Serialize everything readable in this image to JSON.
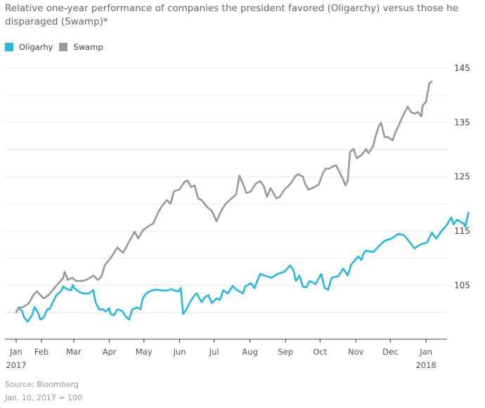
{
  "chart_data": {
    "type": "line",
    "title": "Relative one-year performance of companies the president favored (Oligarchy) versus those he disparaged (Swamp)*",
    "xlabel": "",
    "ylabel": "",
    "x_units": "days since Jan 1, 2017",
    "xlim": [
      0,
      402
    ],
    "ylim": [
      95,
      146.5
    ],
    "grid": true,
    "legend_position": "top-left",
    "y_ticks": [
      {
        "value": 145,
        "label": "145"
      },
      {
        "value": 140,
        "label": ""
      },
      {
        "value": 135,
        "label": "135"
      },
      {
        "value": 130,
        "label": ""
      },
      {
        "value": 125,
        "label": "125"
      },
      {
        "value": 120,
        "label": ""
      },
      {
        "value": 115,
        "label": "115"
      },
      {
        "value": 110,
        "label": ""
      },
      {
        "value": 105,
        "label": "105"
      },
      {
        "value": 100,
        "label": ""
      }
    ],
    "x_ticks": [
      {
        "day": 9,
        "label": "Jan",
        "sub": "2017"
      },
      {
        "day": 31,
        "label": "Feb",
        "sub": ""
      },
      {
        "day": 59,
        "label": "Mar",
        "sub": ""
      },
      {
        "day": 90,
        "label": "Apr",
        "sub": ""
      },
      {
        "day": 120,
        "label": "May",
        "sub": ""
      },
      {
        "day": 151,
        "label": "Jun",
        "sub": ""
      },
      {
        "day": 181,
        "label": "Jul",
        "sub": ""
      },
      {
        "day": 212,
        "label": "Aug",
        "sub": ""
      },
      {
        "day": 243,
        "label": "Sep",
        "sub": ""
      },
      {
        "day": 273,
        "label": "Oct",
        "sub": ""
      },
      {
        "day": 304,
        "label": "Nov",
        "sub": ""
      },
      {
        "day": 334,
        "label": "Dec",
        "sub": ""
      },
      {
        "day": 365,
        "label": "Jan",
        "sub": "2018"
      }
    ],
    "series": [
      {
        "name": "Oligarhy",
        "color": "#25b7e4",
        "points": [
          [
            9,
            100.0
          ],
          [
            11,
            100.9
          ],
          [
            14,
            100.3
          ],
          [
            16,
            99.1
          ],
          [
            19,
            98.3
          ],
          [
            23,
            99.6
          ],
          [
            25,
            101.0
          ],
          [
            28,
            100.0
          ],
          [
            30,
            98.7
          ],
          [
            33,
            99.1
          ],
          [
            36,
            100.6
          ],
          [
            38,
            100.6
          ],
          [
            41,
            101.9
          ],
          [
            44,
            103.2
          ],
          [
            48,
            103.9
          ],
          [
            50,
            104.8
          ],
          [
            53,
            104.3
          ],
          [
            57,
            104.1
          ],
          [
            58,
            105.1
          ],
          [
            60,
            104.4
          ],
          [
            63,
            103.9
          ],
          [
            67,
            103.5
          ],
          [
            72,
            103.5
          ],
          [
            76,
            104.1
          ],
          [
            78,
            101.9
          ],
          [
            81,
            100.6
          ],
          [
            84,
            100.6
          ],
          [
            87,
            100.2
          ],
          [
            90,
            100.8
          ],
          [
            91,
            99.7
          ],
          [
            94,
            99.5
          ],
          [
            97,
            100.6
          ],
          [
            101,
            100.3
          ],
          [
            104,
            99.3
          ],
          [
            107,
            98.7
          ],
          [
            110,
            100.6
          ],
          [
            114,
            100.9
          ],
          [
            117,
            100.6
          ],
          [
            119,
            102.6
          ],
          [
            122,
            103.5
          ],
          [
            125,
            103.9
          ],
          [
            130,
            104.2
          ],
          [
            135,
            104.1
          ],
          [
            138,
            104.0
          ],
          [
            141,
            104.1
          ],
          [
            144,
            104.3
          ],
          [
            147,
            104.0
          ],
          [
            150,
            103.9
          ],
          [
            152,
            104.5
          ],
          [
            154,
            99.7
          ],
          [
            157,
            100.6
          ],
          [
            160,
            101.9
          ],
          [
            164,
            103.2
          ],
          [
            166,
            103.5
          ],
          [
            170,
            101.9
          ],
          [
            173,
            102.8
          ],
          [
            176,
            103.2
          ],
          [
            179,
            101.7
          ],
          [
            183,
            102.6
          ],
          [
            186,
            102.3
          ],
          [
            189,
            104.1
          ],
          [
            193,
            103.5
          ],
          [
            197,
            104.9
          ],
          [
            201,
            104.1
          ],
          [
            206,
            103.5
          ],
          [
            208,
            104.8
          ],
          [
            213,
            105.4
          ],
          [
            216,
            104.5
          ],
          [
            221,
            107.1
          ],
          [
            226,
            106.7
          ],
          [
            231,
            106.4
          ],
          [
            236,
            107.1
          ],
          [
            242,
            107.5
          ],
          [
            247,
            108.7
          ],
          [
            250,
            107.7
          ],
          [
            252,
            105.8
          ],
          [
            255,
            106.8
          ],
          [
            258,
            104.8
          ],
          [
            261,
            104.6
          ],
          [
            264,
            105.8
          ],
          [
            269,
            105.2
          ],
          [
            274,
            107.1
          ],
          [
            277,
            104.5
          ],
          [
            280,
            104.2
          ],
          [
            283,
            106.4
          ],
          [
            289,
            106.7
          ],
          [
            293,
            108.1
          ],
          [
            297,
            106.8
          ],
          [
            300,
            108.8
          ],
          [
            306,
            110.3
          ],
          [
            309,
            109.7
          ],
          [
            311,
            111.0
          ],
          [
            313,
            111.4
          ],
          [
            319,
            111.1
          ],
          [
            323,
            112.0
          ],
          [
            329,
            113.2
          ],
          [
            335,
            113.6
          ],
          [
            341,
            114.5
          ],
          [
            346,
            114.2
          ],
          [
            351,
            112.9
          ],
          [
            355,
            111.8
          ],
          [
            360,
            112.5
          ],
          [
            366,
            112.9
          ],
          [
            370,
            114.7
          ],
          [
            374,
            113.6
          ],
          [
            378,
            114.9
          ],
          [
            382,
            115.8
          ],
          [
            387,
            117.5
          ],
          [
            389,
            116.2
          ],
          [
            392,
            117.1
          ],
          [
            398,
            116.3
          ],
          [
            399,
            115.8
          ],
          [
            402,
            118.4
          ]
        ]
      },
      {
        "name": "Swamp",
        "color": "#999999",
        "points": [
          [
            9,
            100.0
          ],
          [
            11,
            100.9
          ],
          [
            15,
            101.0
          ],
          [
            20,
            101.7
          ],
          [
            24,
            103.2
          ],
          [
            27,
            103.9
          ],
          [
            30,
            103.2
          ],
          [
            33,
            102.6
          ],
          [
            37,
            103.2
          ],
          [
            41,
            104.2
          ],
          [
            45,
            105.2
          ],
          [
            50,
            106.4
          ],
          [
            51,
            107.5
          ],
          [
            54,
            106.0
          ],
          [
            58,
            106.4
          ],
          [
            61,
            105.8
          ],
          [
            67,
            105.8
          ],
          [
            71,
            106.1
          ],
          [
            76,
            106.8
          ],
          [
            80,
            106.0
          ],
          [
            83,
            106.6
          ],
          [
            86,
            108.7
          ],
          [
            89,
            109.5
          ],
          [
            92,
            110.3
          ],
          [
            97,
            112.0
          ],
          [
            99,
            111.5
          ],
          [
            102,
            111.0
          ],
          [
            107,
            113.0
          ],
          [
            112,
            114.9
          ],
          [
            115,
            113.6
          ],
          [
            119,
            115.1
          ],
          [
            124,
            115.9
          ],
          [
            128,
            116.4
          ],
          [
            133,
            118.7
          ],
          [
            137,
            120.0
          ],
          [
            140,
            120.7
          ],
          [
            143,
            120.0
          ],
          [
            146,
            122.3
          ],
          [
            151,
            122.7
          ],
          [
            155,
            124.0
          ],
          [
            158,
            124.3
          ],
          [
            161,
            123.1
          ],
          [
            164,
            123.4
          ],
          [
            167,
            121.0
          ],
          [
            170,
            120.7
          ],
          [
            175,
            119.4
          ],
          [
            179,
            118.7
          ],
          [
            183,
            116.8
          ],
          [
            187,
            118.7
          ],
          [
            191,
            120.0
          ],
          [
            196,
            121.0
          ],
          [
            200,
            121.7
          ],
          [
            203,
            125.2
          ],
          [
            206,
            123.7
          ],
          [
            209,
            122.0
          ],
          [
            213,
            122.3
          ],
          [
            217,
            123.7
          ],
          [
            221,
            124.2
          ],
          [
            224,
            123.3
          ],
          [
            227,
            121.3
          ],
          [
            230,
            122.9
          ],
          [
            235,
            121.0
          ],
          [
            238,
            121.3
          ],
          [
            242,
            122.6
          ],
          [
            245,
            123.2
          ],
          [
            248,
            123.9
          ],
          [
            251,
            125.0
          ],
          [
            254,
            125.5
          ],
          [
            258,
            125.0
          ],
          [
            260,
            123.7
          ],
          [
            263,
            122.6
          ],
          [
            266,
            122.9
          ],
          [
            269,
            123.2
          ],
          [
            272,
            123.6
          ],
          [
            275,
            125.5
          ],
          [
            278,
            126.5
          ],
          [
            281,
            126.5
          ],
          [
            284,
            126.9
          ],
          [
            287,
            127.1
          ],
          [
            290,
            125.8
          ],
          [
            293,
            124.5
          ],
          [
            295,
            123.4
          ],
          [
            297,
            124.2
          ],
          [
            299,
            129.6
          ],
          [
            302,
            130.1
          ],
          [
            305,
            128.4
          ],
          [
            309,
            129.0
          ],
          [
            313,
            130.1
          ],
          [
            315,
            129.3
          ],
          [
            319,
            130.6
          ],
          [
            321,
            132.3
          ],
          [
            324,
            134.3
          ],
          [
            326,
            134.9
          ],
          [
            329,
            132.3
          ],
          [
            332,
            132.3
          ],
          [
            336,
            131.7
          ],
          [
            338,
            133.0
          ],
          [
            341,
            134.3
          ],
          [
            344,
            135.8
          ],
          [
            349,
            137.9
          ],
          [
            352,
            136.9
          ],
          [
            355,
            136.6
          ],
          [
            358,
            136.9
          ],
          [
            361,
            136.1
          ],
          [
            362,
            138.1
          ],
          [
            365,
            138.8
          ],
          [
            368,
            142.3
          ],
          [
            370,
            142.5
          ]
        ]
      }
    ]
  },
  "legend": [
    {
      "label": "Oligarhy",
      "color": "#25b7e4"
    },
    {
      "label": "Swamp",
      "color": "#999999"
    }
  ],
  "footer": {
    "source": "Source: Bloomberg",
    "note": "Jan. 10, 2017 = 100"
  }
}
